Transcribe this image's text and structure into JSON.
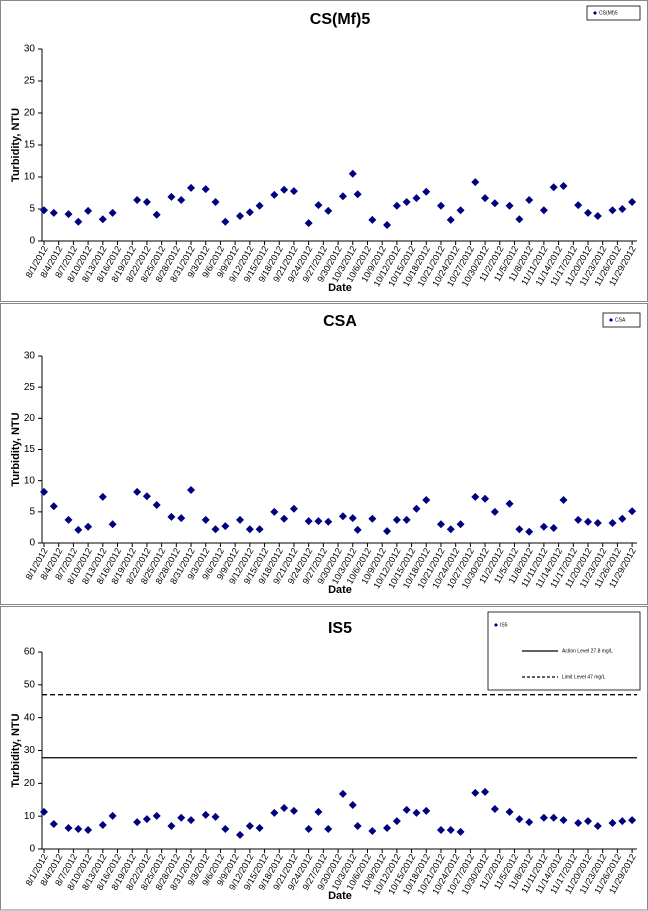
{
  "chart_data": [
    {
      "type": "scatter",
      "title": "CS(Mf)5",
      "x_label": "Date",
      "y_label": "Turbidity, NTU",
      "legend": "upper right",
      "xlim": [
        "8/1/2012",
        "11/30/2012"
      ],
      "xticks": [
        "8/1/2012",
        "8/4/2012",
        "8/7/2012",
        "8/10/2012",
        "8/13/2012",
        "8/16/2012",
        "8/19/2012",
        "8/22/2012",
        "8/25/2012",
        "8/28/2012",
        "8/31/2012",
        "9/3/2012",
        "9/6/2012",
        "9/9/2012",
        "9/12/2012",
        "9/15/2012",
        "9/18/2012",
        "9/21/2012",
        "9/24/2012",
        "9/27/2012",
        "9/30/2012",
        "10/3/2012",
        "10/6/2012",
        "10/9/2012",
        "10/12/2012",
        "10/15/2012",
        "10/18/2012",
        "10/21/2012",
        "10/24/2012",
        "10/27/2012",
        "10/30/2012",
        "11/2/2012",
        "11/5/2012",
        "11/8/2012",
        "11/11/2012",
        "11/14/2012",
        "11/17/2012",
        "11/20/2012",
        "11/23/2012",
        "11/26/2012",
        "11/29/2012"
      ],
      "ylim": [
        0,
        30
      ],
      "yticks": [
        0,
        5,
        10,
        15,
        20,
        25,
        30
      ],
      "series": [
        {
          "name": "CS(Mf)5",
          "color": "#000080",
          "marker": "diamond",
          "x": [
            "8/1/2012",
            "8/3/2012",
            "8/6/2012",
            "8/8/2012",
            "8/10/2012",
            "8/13/2012",
            "8/15/2012",
            "8/20/2012",
            "8/22/2012",
            "8/24/2012",
            "8/27/2012",
            "8/29/2012",
            "8/31/2012",
            "9/3/2012",
            "9/5/2012",
            "9/7/2012",
            "9/10/2012",
            "9/12/2012",
            "9/14/2012",
            "9/17/2012",
            "9/19/2012",
            "9/21/2012",
            "9/24/2012",
            "9/26/2012",
            "9/28/2012",
            "10/1/2012",
            "10/3/2012",
            "10/4/2012",
            "10/7/2012",
            "10/10/2012",
            "10/12/2012",
            "10/14/2012",
            "10/16/2012",
            "10/18/2012",
            "10/21/2012",
            "10/23/2012",
            "10/25/2012",
            "10/28/2012",
            "10/30/2012",
            "11/1/2012",
            "11/4/2012",
            "11/6/2012",
            "11/8/2012",
            "11/11/2012",
            "11/13/2012",
            "11/15/2012",
            "11/18/2012",
            "11/20/2012",
            "11/22/2012",
            "11/25/2012",
            "11/27/2012",
            "11/29/2012"
          ],
          "values": [
            4.8,
            4.4,
            4.2,
            3.0,
            4.7,
            3.4,
            4.4,
            6.4,
            6.1,
            4.1,
            6.9,
            6.4,
            8.3,
            8.1,
            6.1,
            3.0,
            3.9,
            4.5,
            5.5,
            7.2,
            8.0,
            7.8,
            2.8,
            5.6,
            4.7,
            7.0,
            10.5,
            7.3,
            3.3,
            2.5,
            5.5,
            6.1,
            6.7,
            7.7,
            5.5,
            3.3,
            4.8,
            9.2,
            6.7,
            5.9,
            5.5,
            3.4,
            6.4,
            4.8,
            8.4,
            8.6,
            5.6,
            4.4,
            3.9,
            4.8,
            5.0,
            6.1
          ]
        }
      ]
    },
    {
      "type": "scatter",
      "title": "CSA",
      "x_label": "Date",
      "y_label": "Turbidity, NTU",
      "legend": "upper right",
      "xlim": [
        "8/1/2012",
        "11/30/2012"
      ],
      "xticks": [
        "8/1/2012",
        "8/4/2012",
        "8/7/2012",
        "8/10/2012",
        "8/13/2012",
        "8/16/2012",
        "8/19/2012",
        "8/22/2012",
        "8/25/2012",
        "8/28/2012",
        "8/31/2012",
        "9/3/2012",
        "9/6/2012",
        "9/9/2012",
        "9/12/2012",
        "9/15/2012",
        "9/18/2012",
        "9/21/2012",
        "9/24/2012",
        "9/27/2012",
        "9/30/2012",
        "10/3/2012",
        "10/6/2012",
        "10/9/2012",
        "10/12/2012",
        "10/15/2012",
        "10/18/2012",
        "10/21/2012",
        "10/24/2012",
        "10/27/2012",
        "10/30/2012",
        "11/2/2012",
        "11/5/2012",
        "11/8/2012",
        "11/11/2012",
        "11/14/2012",
        "11/17/2012",
        "11/20/2012",
        "11/23/2012",
        "11/26/2012",
        "11/29/2012"
      ],
      "ylim": [
        0,
        30
      ],
      "yticks": [
        0,
        5,
        10,
        15,
        20,
        25,
        30
      ],
      "series": [
        {
          "name": "CSA",
          "color": "#000080",
          "marker": "diamond",
          "x": [
            "8/1/2012",
            "8/3/2012",
            "8/6/2012",
            "8/8/2012",
            "8/10/2012",
            "8/13/2012",
            "8/15/2012",
            "8/20/2012",
            "8/22/2012",
            "8/24/2012",
            "8/27/2012",
            "8/29/2012",
            "8/31/2012",
            "9/3/2012",
            "9/5/2012",
            "9/7/2012",
            "9/10/2012",
            "9/12/2012",
            "9/14/2012",
            "9/17/2012",
            "9/19/2012",
            "9/21/2012",
            "9/24/2012",
            "9/26/2012",
            "9/28/2012",
            "10/1/2012",
            "10/3/2012",
            "10/4/2012",
            "10/7/2012",
            "10/10/2012",
            "10/12/2012",
            "10/14/2012",
            "10/16/2012",
            "10/18/2012",
            "10/21/2012",
            "10/23/2012",
            "10/25/2012",
            "10/28/2012",
            "10/30/2012",
            "11/1/2012",
            "11/4/2012",
            "11/6/2012",
            "11/8/2012",
            "11/11/2012",
            "11/13/2012",
            "11/15/2012",
            "11/18/2012",
            "11/20/2012",
            "11/22/2012",
            "11/25/2012",
            "11/27/2012",
            "11/29/2012"
          ],
          "values": [
            8.2,
            5.9,
            3.7,
            2.1,
            2.6,
            7.4,
            3.0,
            8.2,
            7.5,
            6.1,
            4.2,
            4.0,
            8.5,
            3.7,
            2.2,
            2.7,
            3.7,
            2.2,
            2.2,
            5.0,
            3.9,
            5.5,
            3.5,
            3.5,
            3.4,
            4.3,
            4.0,
            2.1,
            3.9,
            1.9,
            3.7,
            3.7,
            5.5,
            6.9,
            3.0,
            2.2,
            3.0,
            7.4,
            7.1,
            5.0,
            6.3,
            2.2,
            1.8,
            2.6,
            2.4,
            6.9,
            3.7,
            3.4,
            3.2,
            3.2,
            3.9,
            5.1
          ]
        }
      ]
    },
    {
      "type": "scatter",
      "title": "IS5",
      "x_label": "Date",
      "y_label": "Turbidity, NTU",
      "legend": "upper right",
      "xlim": [
        "8/1/2012",
        "11/30/2012"
      ],
      "xticks": [
        "8/1/2012",
        "8/4/2012",
        "8/7/2012",
        "8/10/2012",
        "8/13/2012",
        "8/16/2012",
        "8/19/2012",
        "8/22/2012",
        "8/25/2012",
        "8/28/2012",
        "8/31/2012",
        "9/3/2012",
        "9/6/2012",
        "9/9/2012",
        "9/12/2012",
        "9/15/2012",
        "9/18/2012",
        "9/21/2012",
        "9/24/2012",
        "9/27/2012",
        "9/30/2012",
        "10/3/2012",
        "10/6/2012",
        "10/9/2012",
        "10/12/2012",
        "10/15/2012",
        "10/18/2012",
        "10/21/2012",
        "10/24/2012",
        "10/27/2012",
        "10/30/2012",
        "11/2/2012",
        "11/5/2012",
        "11/8/2012",
        "11/11/2012",
        "11/14/2012",
        "11/17/2012",
        "11/20/2012",
        "11/23/2012",
        "11/26/2012",
        "11/29/2012"
      ],
      "ylim": [
        0,
        60
      ],
      "yticks": [
        0,
        10,
        20,
        30,
        40,
        50,
        60
      ],
      "series": [
        {
          "name": "IS5",
          "color": "#000080",
          "marker": "diamond",
          "x": [
            "8/1/2012",
            "8/3/2012",
            "8/6/2012",
            "8/8/2012",
            "8/10/2012",
            "8/13/2012",
            "8/15/2012",
            "8/20/2012",
            "8/22/2012",
            "8/24/2012",
            "8/27/2012",
            "8/29/2012",
            "8/31/2012",
            "9/3/2012",
            "9/5/2012",
            "9/7/2012",
            "9/10/2012",
            "9/12/2012",
            "9/14/2012",
            "9/17/2012",
            "9/19/2012",
            "9/21/2012",
            "9/24/2012",
            "9/26/2012",
            "9/28/2012",
            "10/1/2012",
            "10/3/2012",
            "10/4/2012",
            "10/7/2012",
            "10/10/2012",
            "10/12/2012",
            "10/14/2012",
            "10/16/2012",
            "10/18/2012",
            "10/21/2012",
            "10/23/2012",
            "10/25/2012",
            "10/28/2012",
            "10/30/2012",
            "11/1/2012",
            "11/4/2012",
            "11/6/2012",
            "11/8/2012",
            "11/11/2012",
            "11/13/2012",
            "11/15/2012",
            "11/18/2012",
            "11/20/2012",
            "11/22/2012",
            "11/25/2012",
            "11/27/2012",
            "11/29/2012"
          ],
          "values": [
            11.3,
            7.6,
            6.4,
            6.1,
            5.8,
            7.3,
            10.1,
            8.2,
            9.1,
            10.1,
            7.0,
            9.5,
            8.8,
            10.4,
            9.8,
            6.1,
            4.3,
            7.0,
            6.4,
            11.0,
            12.5,
            11.6,
            6.1,
            11.3,
            6.1,
            16.8,
            13.4,
            7.0,
            5.5,
            6.4,
            8.5,
            11.9,
            11.0,
            11.6,
            5.8,
            5.8,
            5.2,
            17.1,
            17.4,
            12.2,
            11.3,
            9.1,
            8.2,
            9.5,
            9.5,
            8.8,
            7.9,
            8.5,
            7.0,
            7.9,
            8.5,
            8.8
          ]
        }
      ],
      "hlines": [
        {
          "name": "Action Level 27.8 mg/L",
          "value": 27.8,
          "color": "#000000",
          "style": "solid"
        },
        {
          "name": "Limit Level 47 mg/L",
          "value": 47,
          "color": "#000000",
          "style": "dashed"
        }
      ]
    }
  ]
}
